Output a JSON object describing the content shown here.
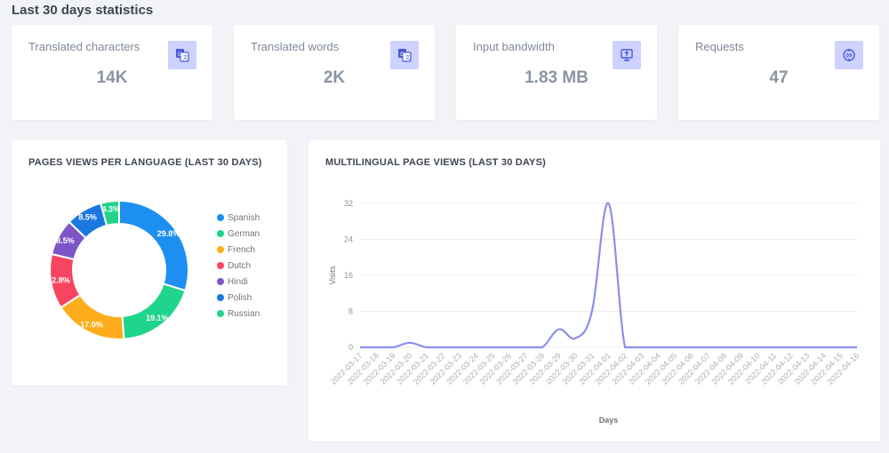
{
  "page": {
    "section_title": "Last 30 days statistics"
  },
  "stats": [
    {
      "label": "Translated characters",
      "value": "14K",
      "icon": "translate-icon"
    },
    {
      "label": "Translated words",
      "value": "2K",
      "icon": "translate-icon"
    },
    {
      "label": "Input bandwidth",
      "value": "1.83 MB",
      "icon": "upload-monitor-icon"
    },
    {
      "label": "Requests",
      "value": "47",
      "icon": "code-request-icon"
    }
  ],
  "colors": {
    "accent_icon_bg": "#cdd2ff",
    "line": "#8a8ef0"
  },
  "chart_data": [
    {
      "type": "pie",
      "title": "PAGES VIEWS PER LANGUAGE (LAST 30 DAYS)",
      "donut": true,
      "legend_position": "right",
      "slices": [
        {
          "label": "Spanish",
          "value": 29.8,
          "display": "29.8%",
          "color": "#1e8ff2"
        },
        {
          "label": "German",
          "value": 19.1,
          "display": "19.1%",
          "color": "#1fd48b"
        },
        {
          "label": "French",
          "value": 17.0,
          "display": "17.0%",
          "color": "#ffad1c"
        },
        {
          "label": "Dutch",
          "value": 12.8,
          "display": "12.8%",
          "color": "#f74560"
        },
        {
          "label": "Hindi",
          "value": 8.5,
          "display": "8.5%",
          "color": "#7d55c7"
        },
        {
          "label": "Polish",
          "value": 8.5,
          "display": "8.5%",
          "color": "#1a78e0"
        },
        {
          "label": "Russian",
          "value": 4.3,
          "display": "4.3%",
          "color": "#21d48a"
        }
      ]
    },
    {
      "type": "line",
      "title": "MULTILINGUAL PAGE VIEWS (LAST 30 DAYS)",
      "xlabel": "Days",
      "ylabel": "Visits",
      "ylim": [
        0,
        32
      ],
      "yticks": [
        0,
        8,
        16,
        24,
        32
      ],
      "grid": true,
      "x": [
        "2022-03-17",
        "2022-03-18",
        "2022-03-19",
        "2022-03-20",
        "2022-03-21",
        "2022-03-22",
        "2022-03-23",
        "2022-03-24",
        "2022-03-25",
        "2022-03-26",
        "2022-03-27",
        "2022-03-28",
        "2022-03-29",
        "2022-03-30",
        "2022-03-31",
        "2022-04-01",
        "2022-04-02",
        "2022-04-03",
        "2022-04-04",
        "2022-04-05",
        "2022-04-06",
        "2022-04-07",
        "2022-04-08",
        "2022-04-09",
        "2022-04-10",
        "2022-04-11",
        "2022-04-12",
        "2022-04-13",
        "2022-04-14",
        "2022-04-15",
        "2022-04-16"
      ],
      "series": [
        {
          "values": [
            0,
            0,
            0,
            1,
            0,
            0,
            0,
            0,
            0,
            0,
            0,
            0,
            4,
            2,
            8,
            32,
            0,
            0,
            0,
            0,
            0,
            0,
            0,
            0,
            0,
            0,
            0,
            0,
            0,
            0,
            0
          ]
        }
      ]
    }
  ]
}
